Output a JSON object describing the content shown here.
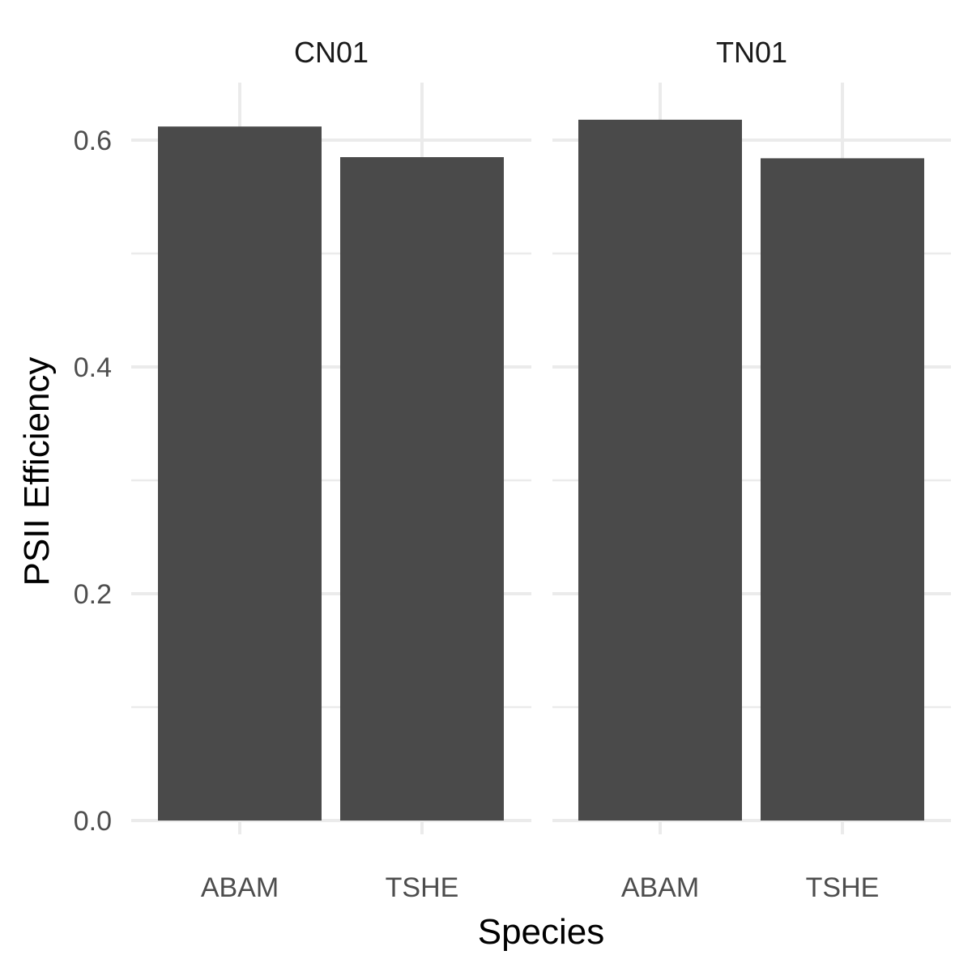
{
  "chart_data": {
    "type": "bar",
    "xlabel": "Species",
    "ylabel": "PSII Efficiency",
    "ylim": [
      0,
      0.65
    ],
    "yticks": [
      "0.0",
      "0.2",
      "0.4",
      "0.6"
    ],
    "grid": true,
    "bar_color": "#4a4a4a",
    "grid_color": "#ebebeb",
    "panels": [
      {
        "facet": "CN01",
        "categories": [
          "ABAM",
          "TSHE"
        ],
        "values": [
          0.612,
          0.585
        ]
      },
      {
        "facet": "TN01",
        "categories": [
          "ABAM",
          "TSHE"
        ],
        "values": [
          0.618,
          0.584
        ]
      }
    ]
  }
}
